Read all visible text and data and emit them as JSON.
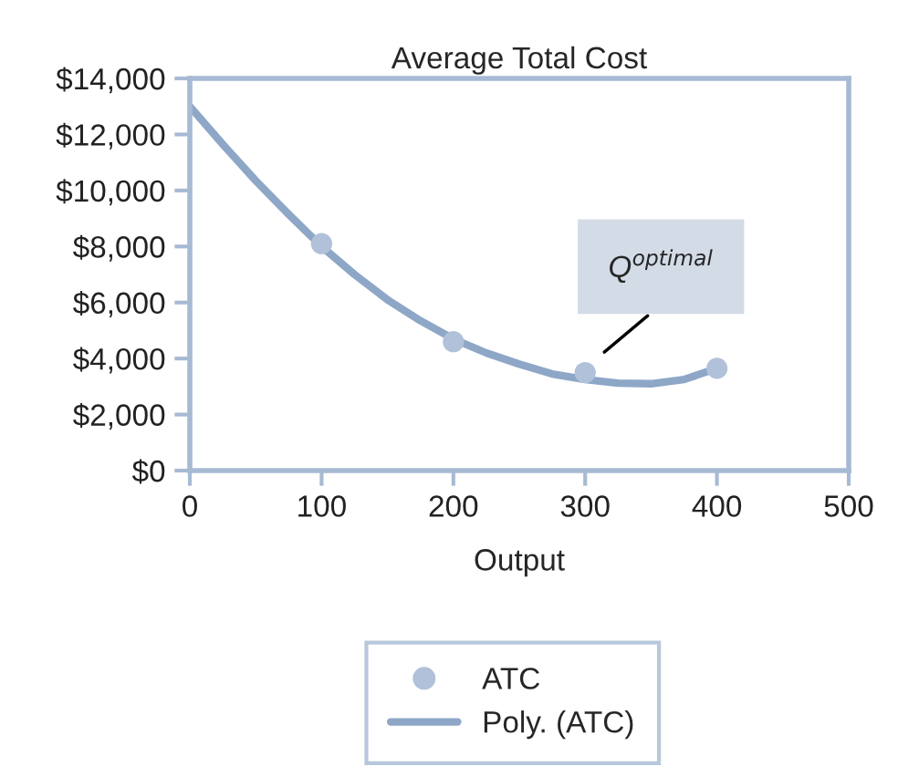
{
  "chart_data": {
    "type": "scatter",
    "title": "Average Total Cost",
    "xlabel": "Output",
    "xlim": [
      0,
      500
    ],
    "xticks": [
      0,
      100,
      200,
      300,
      400,
      500
    ],
    "ylim": [
      0,
      14000
    ],
    "yticks": [
      {
        "value": 0,
        "label": "$0"
      },
      {
        "value": 2000,
        "label": "$2,000"
      },
      {
        "value": 4000,
        "label": "$4,000"
      },
      {
        "value": 6000,
        "label": "$6,000"
      },
      {
        "value": 8000,
        "label": "$8,000"
      },
      {
        "value": 10000,
        "label": "$10,000"
      },
      {
        "value": 12000,
        "label": "$12,000"
      },
      {
        "value": 14000,
        "label": "$14,000"
      }
    ],
    "series": [
      {
        "name": "ATC",
        "color": "#b1c1d9",
        "marker": "circle",
        "x": [
          100,
          200,
          300,
          400
        ],
        "values": [
          8100,
          4600,
          3500,
          3650
        ]
      },
      {
        "name": "Poly. (ATC)",
        "type": "line",
        "color": "#8ea7c7",
        "marker": "none",
        "line_style": "solid",
        "x": [
          0,
          25,
          50,
          75,
          100,
          125,
          150,
          175,
          200,
          225,
          250,
          275,
          300,
          325,
          350,
          375,
          400
        ],
        "values": [
          13000,
          11650,
          10350,
          9150,
          8000,
          7000,
          6100,
          5350,
          4700,
          4200,
          3800,
          3450,
          3250,
          3120,
          3100,
          3250,
          3650
        ]
      }
    ],
    "annotations": [
      "Q$^{optimal}$"
    ],
    "grid": false,
    "legend": "bottom"
  }
}
